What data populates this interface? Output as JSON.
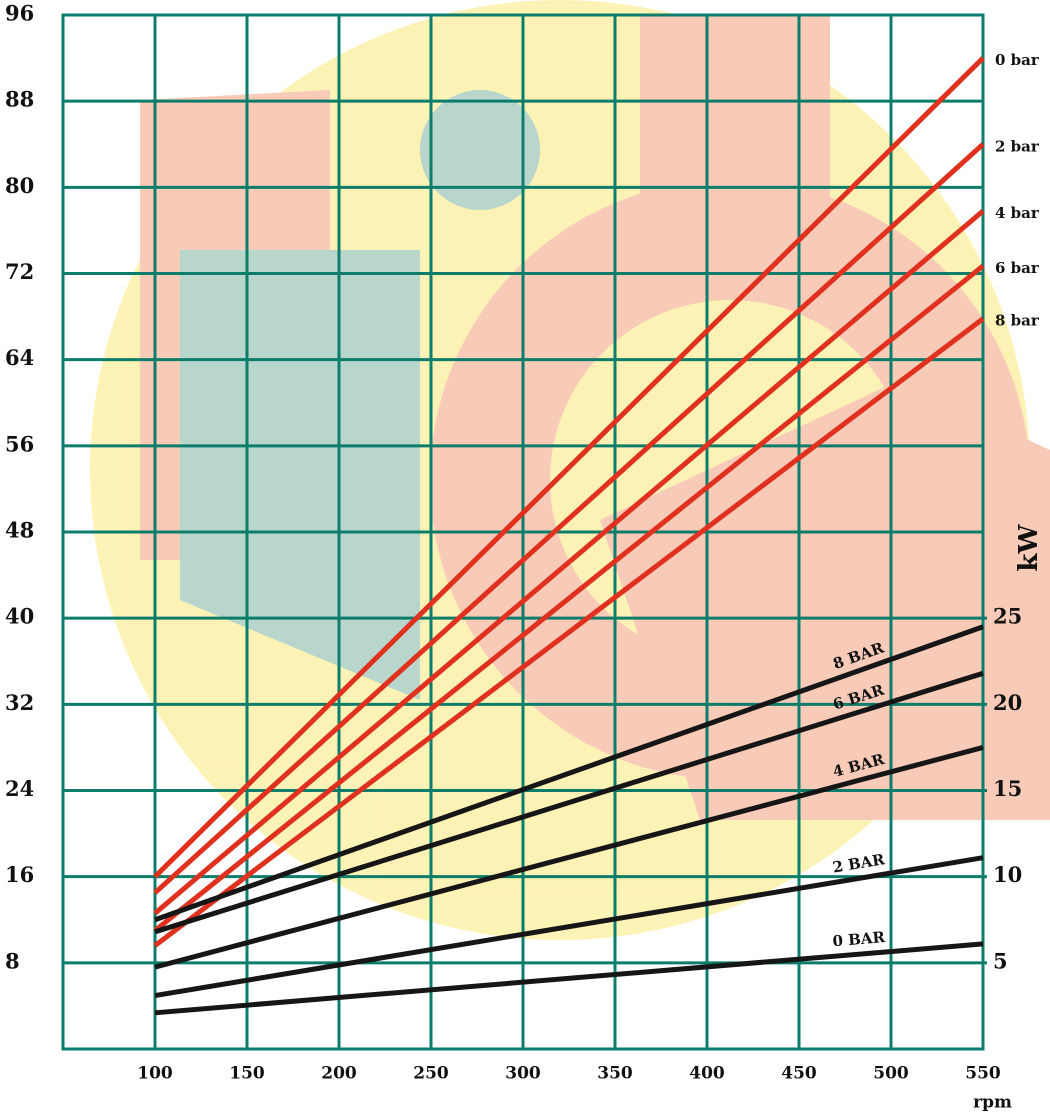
{
  "chart_data": {
    "type": "line",
    "x_label": "rpm",
    "y2_label": "kW",
    "xlim": [
      50,
      550
    ],
    "xticks": [
      100,
      150,
      200,
      250,
      300,
      350,
      400,
      450,
      500,
      550
    ],
    "ylim": [
      0,
      96
    ],
    "yticks": [
      8,
      16,
      24,
      32,
      40,
      48,
      56,
      64,
      72,
      80,
      88,
      96
    ],
    "y2lim": [
      0,
      60
    ],
    "y2ticks": [
      5,
      10,
      15,
      20,
      25
    ],
    "grid": true,
    "grid_color": "#0b7d6a",
    "x": [
      100,
      550
    ],
    "series": [
      {
        "name": "0 bar",
        "color": "#e0301e",
        "values": [
          16,
          92
        ]
      },
      {
        "name": "2 bar",
        "color": "#e0301e",
        "values": [
          14.5,
          84
        ]
      },
      {
        "name": "4 bar",
        "color": "#e0301e",
        "values": [
          12.6,
          77.8
        ]
      },
      {
        "name": "6 bar",
        "color": "#e0301e",
        "values": [
          11,
          72.7
        ]
      },
      {
        "name": "8 bar",
        "color": "#e0301e",
        "values": [
          9.6,
          67.8
        ]
      },
      {
        "name": "8 BAR",
        "color": "#161616",
        "axis": "y2",
        "values": [
          7.5,
          24.5
        ]
      },
      {
        "name": "6 BAR",
        "color": "#161616",
        "axis": "y2",
        "values": [
          6.8,
          21.8
        ]
      },
      {
        "name": "4 BAR",
        "color": "#161616",
        "axis": "y2",
        "values": [
          4.75,
          17.5
        ]
      },
      {
        "name": "2 BAR",
        "color": "#161616",
        "axis": "y2",
        "values": [
          3.1,
          11.1
        ]
      },
      {
        "name": "0 BAR",
        "color": "#161616",
        "axis": "y2",
        "values": [
          2.1,
          6.1
        ]
      }
    ]
  }
}
